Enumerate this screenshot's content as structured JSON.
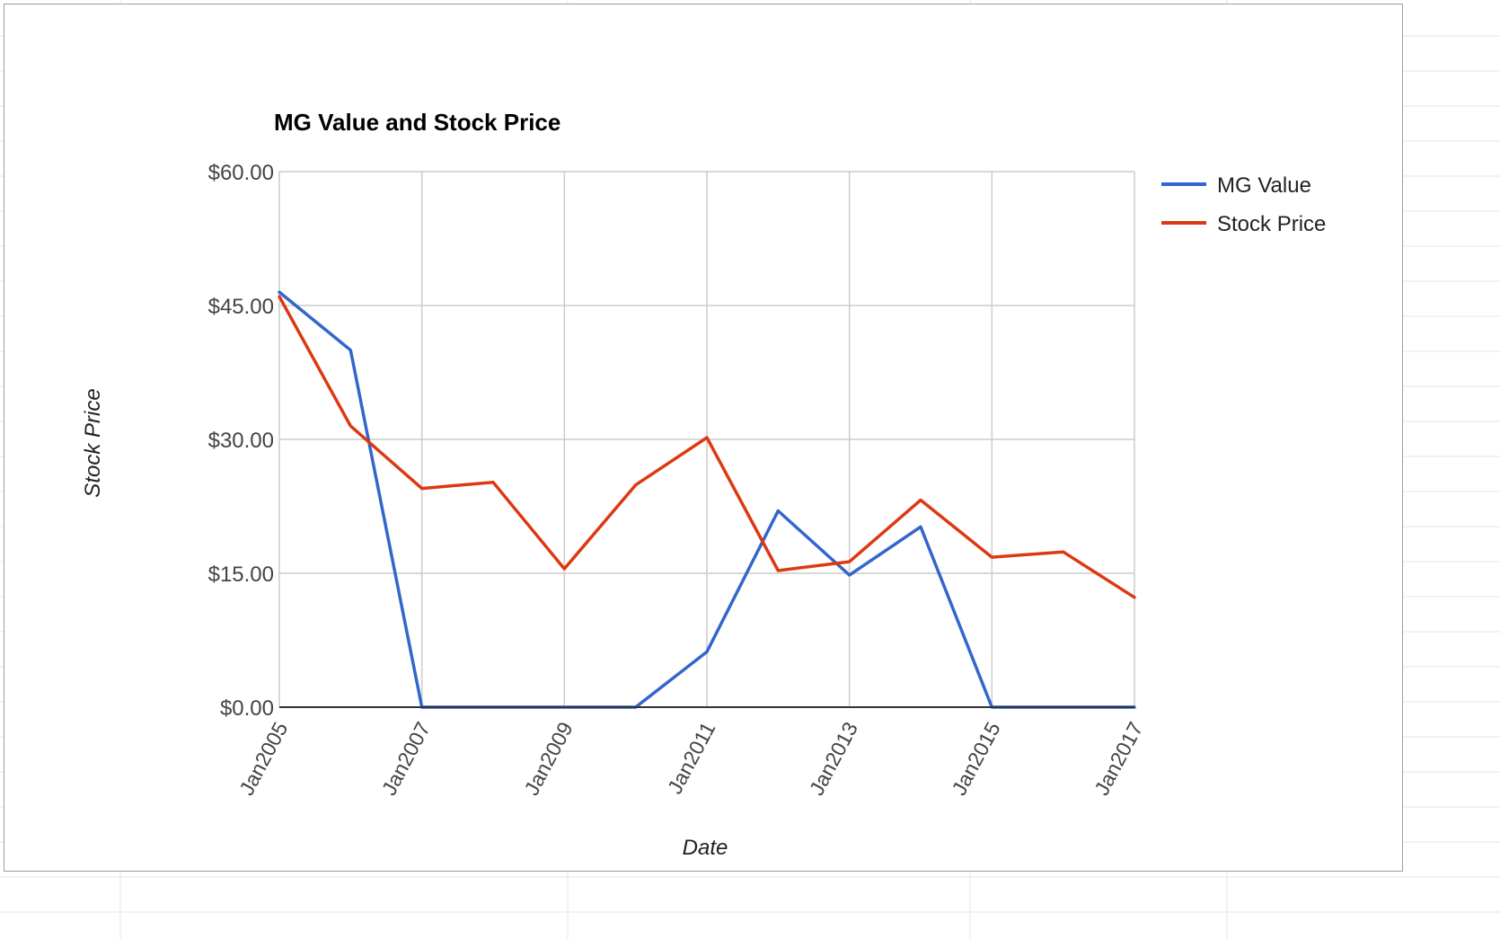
{
  "chart_data": {
    "type": "line",
    "title": "MG Value and Stock Price",
    "xlabel": "Date",
    "ylabel": "Stock Price",
    "x": [
      "Jan 2005",
      "Jan 2006",
      "Jan 2007",
      "Jan 2008",
      "Jan 2009",
      "Jan 2010",
      "Jan 2011",
      "Jan 2012",
      "Jan 2013",
      "Jan 2014",
      "Jan 2015",
      "Jan 2016",
      "Jan 2017"
    ],
    "x_tick_labels": [
      "Jan2005",
      "Jan2007",
      "Jan2009",
      "Jan2011",
      "Jan2013",
      "Jan2015",
      "Jan2017"
    ],
    "y_tick_labels": [
      "$0.00",
      "$15.00",
      "$30.00",
      "$45.00",
      "$60.00"
    ],
    "ylim": [
      0,
      60
    ],
    "grid": true,
    "legend_position": "right",
    "series": [
      {
        "name": "MG Value",
        "color": "#3366cc",
        "values": [
          46.5,
          40.0,
          0,
          0,
          0,
          0,
          6.2,
          22.0,
          14.8,
          20.2,
          0,
          0,
          0
        ]
      },
      {
        "name": "Stock Price",
        "color": "#dc3912",
        "values": [
          46.0,
          31.5,
          24.5,
          25.2,
          15.5,
          24.9,
          30.2,
          15.3,
          16.3,
          23.2,
          16.8,
          17.4,
          12.3
        ]
      }
    ]
  }
}
